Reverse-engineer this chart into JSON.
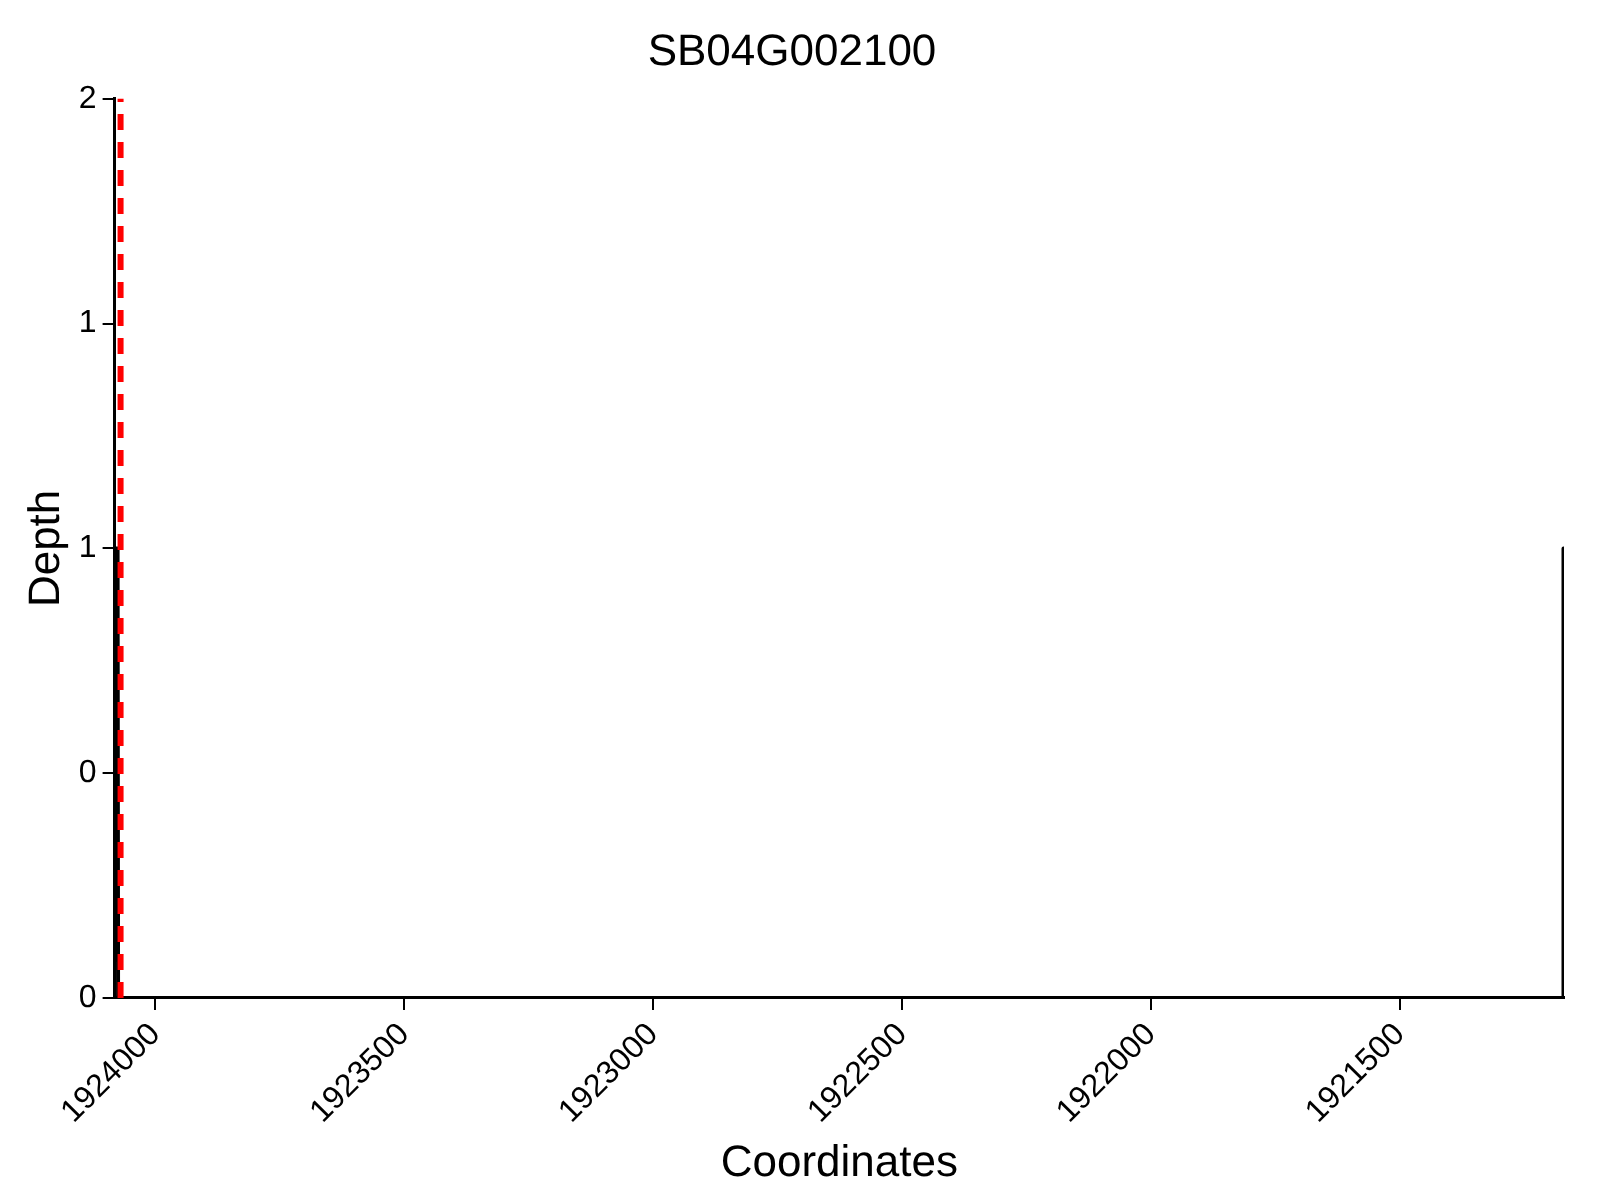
{
  "chart_data": {
    "type": "line",
    "title": "SB04G002100",
    "xlabel": "Coordinates",
    "ylabel": "Depth",
    "xlim": [
      1924082,
      1921170
    ],
    "xticks": [
      1924000,
      1923500,
      1923000,
      1922500,
      1922000,
      1921500
    ],
    "ylim": [
      0,
      2
    ],
    "yticks": [
      0,
      {
        "value": 0.5,
        "label": "0"
      },
      1,
      {
        "value": 1.5,
        "label": "1"
      },
      2
    ],
    "series": [
      {
        "color": "#000000",
        "x": [
          1924082,
          1924076,
          1924075,
          1921172,
          1921171,
          1921170
        ],
        "values": [
          1,
          1,
          0,
          0,
          1,
          1
        ]
      }
    ],
    "ref_lines": [
      {
        "axis": "x",
        "value": 1924070,
        "color": "#ff0000",
        "line_style": "dashed"
      }
    ],
    "grid": false,
    "legend": false,
    "marker": "none",
    "line_style": "solid"
  }
}
